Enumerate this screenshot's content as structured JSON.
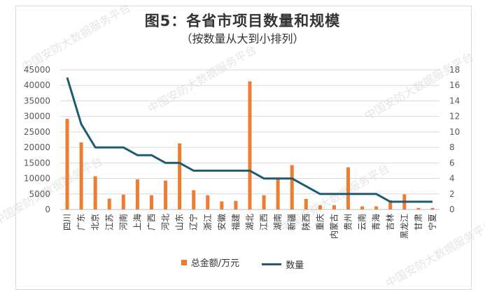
{
  "title": "图5：各省市项目数量和规模",
  "subtitle": "（按数量从大到小排列）",
  "watermark": "中国安防大数据服务平台",
  "colors": {
    "bar": "#ED7D31",
    "line": "#1F5C73",
    "grid": "#d9d9d9",
    "text": "#595959"
  },
  "legend": {
    "bar_label": "总金额/万元",
    "line_label": "数量",
    "placement": "bottom"
  },
  "chart_data": {
    "type": "bar",
    "categories": [
      "四川",
      "广东",
      "北京",
      "江苏",
      "河南",
      "上海",
      "广西",
      "河北",
      "山东",
      "辽宁",
      "浙江",
      "安徽",
      "福建",
      "湖北",
      "江西",
      "湖南",
      "新疆",
      "陕西",
      "重庆",
      "内蒙古",
      "贵州",
      "云南",
      "青海",
      "吉林",
      "黑龙江",
      "甘肃",
      "宁夏"
    ],
    "series": [
      {
        "name": "总金额/万元",
        "type": "bar",
        "axis": "left",
        "values": [
          29200,
          21600,
          10700,
          3500,
          4800,
          9700,
          4600,
          9300,
          21300,
          6200,
          4600,
          2600,
          2800,
          41300,
          4600,
          9700,
          14300,
          3400,
          1400,
          1400,
          13600,
          1000,
          1000,
          3000,
          4900,
          500,
          500
        ]
      },
      {
        "name": "数量",
        "type": "line",
        "axis": "right",
        "values": [
          17,
          11,
          8,
          8,
          8,
          7,
          7,
          6,
          6,
          5,
          5,
          5,
          5,
          5,
          4,
          4,
          4,
          3,
          2,
          2,
          2,
          2,
          2,
          1,
          1,
          1,
          1
        ]
      }
    ],
    "y_left": {
      "min": 0,
      "max": 45000,
      "ticks": [
        "0",
        "5000",
        "10000",
        "15000",
        "20000",
        "25000",
        "30000",
        "35000",
        "40000",
        "45000"
      ]
    },
    "y_right": {
      "min": 0,
      "max": 18,
      "ticks": [
        "0",
        "2",
        "4",
        "6",
        "8",
        "10",
        "12",
        "14",
        "16",
        "18"
      ]
    },
    "grid": true
  }
}
